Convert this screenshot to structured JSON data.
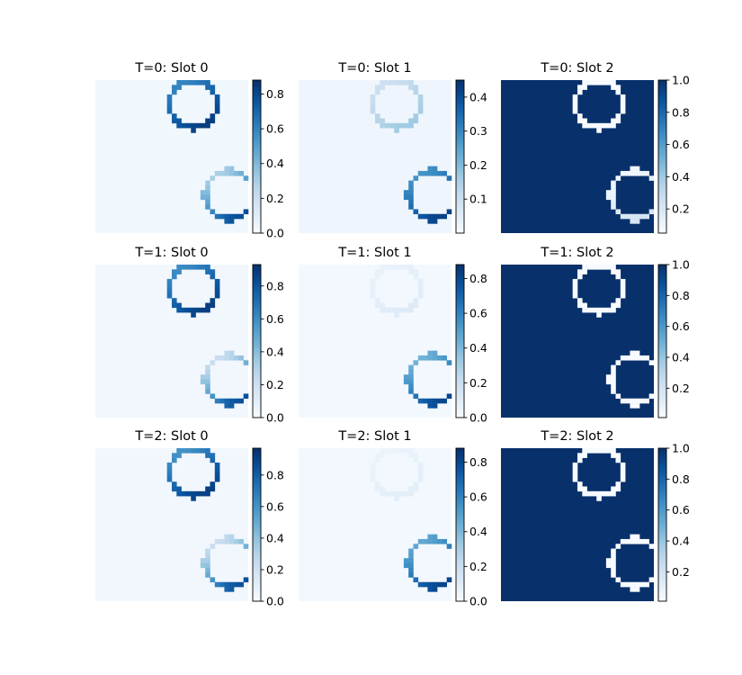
{
  "chart_data": {
    "type": "heatmap",
    "colormap": "Blues",
    "grid_size": 32,
    "ring_centers": [
      [
        20,
        4.5
      ],
      [
        27.5,
        23.5
      ]
    ],
    "ring_radius": 5,
    "panels": [
      {
        "title": "T=0: Slot 0",
        "vmin": 0.0,
        "vmax": 0.88,
        "background": 0.03,
        "ring_top": [
          0.55,
          0.88
        ],
        "ring_bottom": [
          0.2,
          0.88
        ],
        "ticks": [
          "0.0",
          "0.2",
          "0.4",
          "0.6",
          "0.8"
        ]
      },
      {
        "title": "T=0: Slot 1",
        "vmin": 0.0,
        "vmax": 0.45,
        "background": 0.02,
        "ring_top": [
          0.08,
          0.18
        ],
        "ring_bottom": [
          0.25,
          0.45
        ],
        "ticks": [
          "0.1",
          "0.2",
          "0.3",
          "0.4"
        ]
      },
      {
        "title": "T=0: Slot 2",
        "vmin": 0.05,
        "vmax": 1.0,
        "background": 1.0,
        "ring_top": [
          0.05,
          0.05
        ],
        "ring_bottom": [
          0.05,
          0.25
        ],
        "ticks": [
          "0.2",
          "0.4",
          "0.6",
          "0.8",
          "1.0"
        ]
      },
      {
        "title": "T=1: Slot 0",
        "vmin": 0.0,
        "vmax": 0.93,
        "background": 0.03,
        "ring_top": [
          0.55,
          0.93
        ],
        "ring_bottom": [
          0.1,
          0.93
        ],
        "ticks": [
          "0.0",
          "0.2",
          "0.4",
          "0.6",
          "0.8"
        ]
      },
      {
        "title": "T=1: Slot 1",
        "vmin": 0.0,
        "vmax": 0.88,
        "background": 0.02,
        "ring_top": [
          0.05,
          0.12
        ],
        "ring_bottom": [
          0.35,
          0.88
        ],
        "ticks": [
          "0.0",
          "0.2",
          "0.4",
          "0.6",
          "0.8"
        ]
      },
      {
        "title": "T=1: Slot 2",
        "vmin": 0.01,
        "vmax": 1.0,
        "background": 1.0,
        "ring_top": [
          0.01,
          0.01
        ],
        "ring_bottom": [
          0.01,
          0.01
        ],
        "ticks": [
          "0.2",
          "0.4",
          "0.6",
          "0.8",
          "1.0"
        ]
      },
      {
        "title": "T=2: Slot 0",
        "vmin": 0.0,
        "vmax": 0.97,
        "background": 0.03,
        "ring_top": [
          0.55,
          0.97
        ],
        "ring_bottom": [
          0.1,
          0.97
        ],
        "ticks": [
          "0.0",
          "0.2",
          "0.4",
          "0.6",
          "0.8"
        ]
      },
      {
        "title": "T=2: Slot 1",
        "vmin": 0.0,
        "vmax": 0.88,
        "background": 0.02,
        "ring_top": [
          0.04,
          0.1
        ],
        "ring_bottom": [
          0.4,
          0.88
        ],
        "ticks": [
          "0.0",
          "0.2",
          "0.4",
          "0.6",
          "0.8"
        ]
      },
      {
        "title": "T=2: Slot 2",
        "vmin": 0.01,
        "vmax": 1.0,
        "background": 1.0,
        "ring_top": [
          0.01,
          0.01
        ],
        "ring_bottom": [
          0.01,
          0.01
        ],
        "ticks": [
          "0.2",
          "0.4",
          "0.6",
          "0.8",
          "1.0"
        ]
      }
    ]
  }
}
